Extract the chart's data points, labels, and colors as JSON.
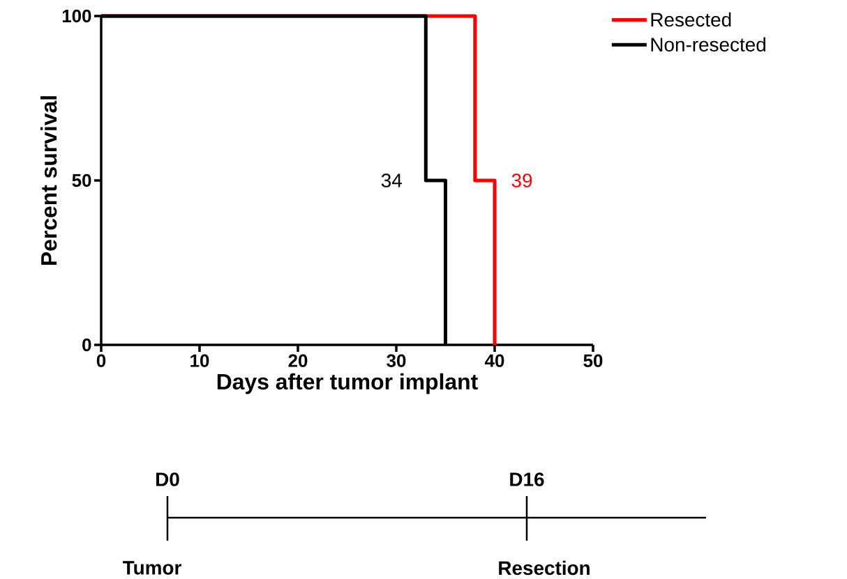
{
  "chart_data": {
    "type": "step",
    "xlabel": "Days after tumor implant",
    "ylabel": "Percent survival",
    "xlim": [
      0,
      50
    ],
    "ylim": [
      0,
      100
    ],
    "xticks": [
      0,
      10,
      20,
      30,
      40,
      50
    ],
    "yticks": [
      0,
      50,
      100
    ],
    "grid": false,
    "legend": "top right",
    "marker": "none",
    "line_style": "solid",
    "series": [
      {
        "name": "Resected",
        "color": "#ff0000",
        "x": [
          0,
          38,
          40
        ],
        "values": [
          100,
          50,
          0
        ]
      },
      {
        "name": "Non-resected",
        "color": "#000000",
        "x": [
          0,
          33,
          35
        ],
        "values": [
          100,
          50,
          0
        ]
      }
    ],
    "annotations": [
      "34",
      "39",
      "D0",
      "Tumor",
      "D16",
      "Resection"
    ]
  }
}
